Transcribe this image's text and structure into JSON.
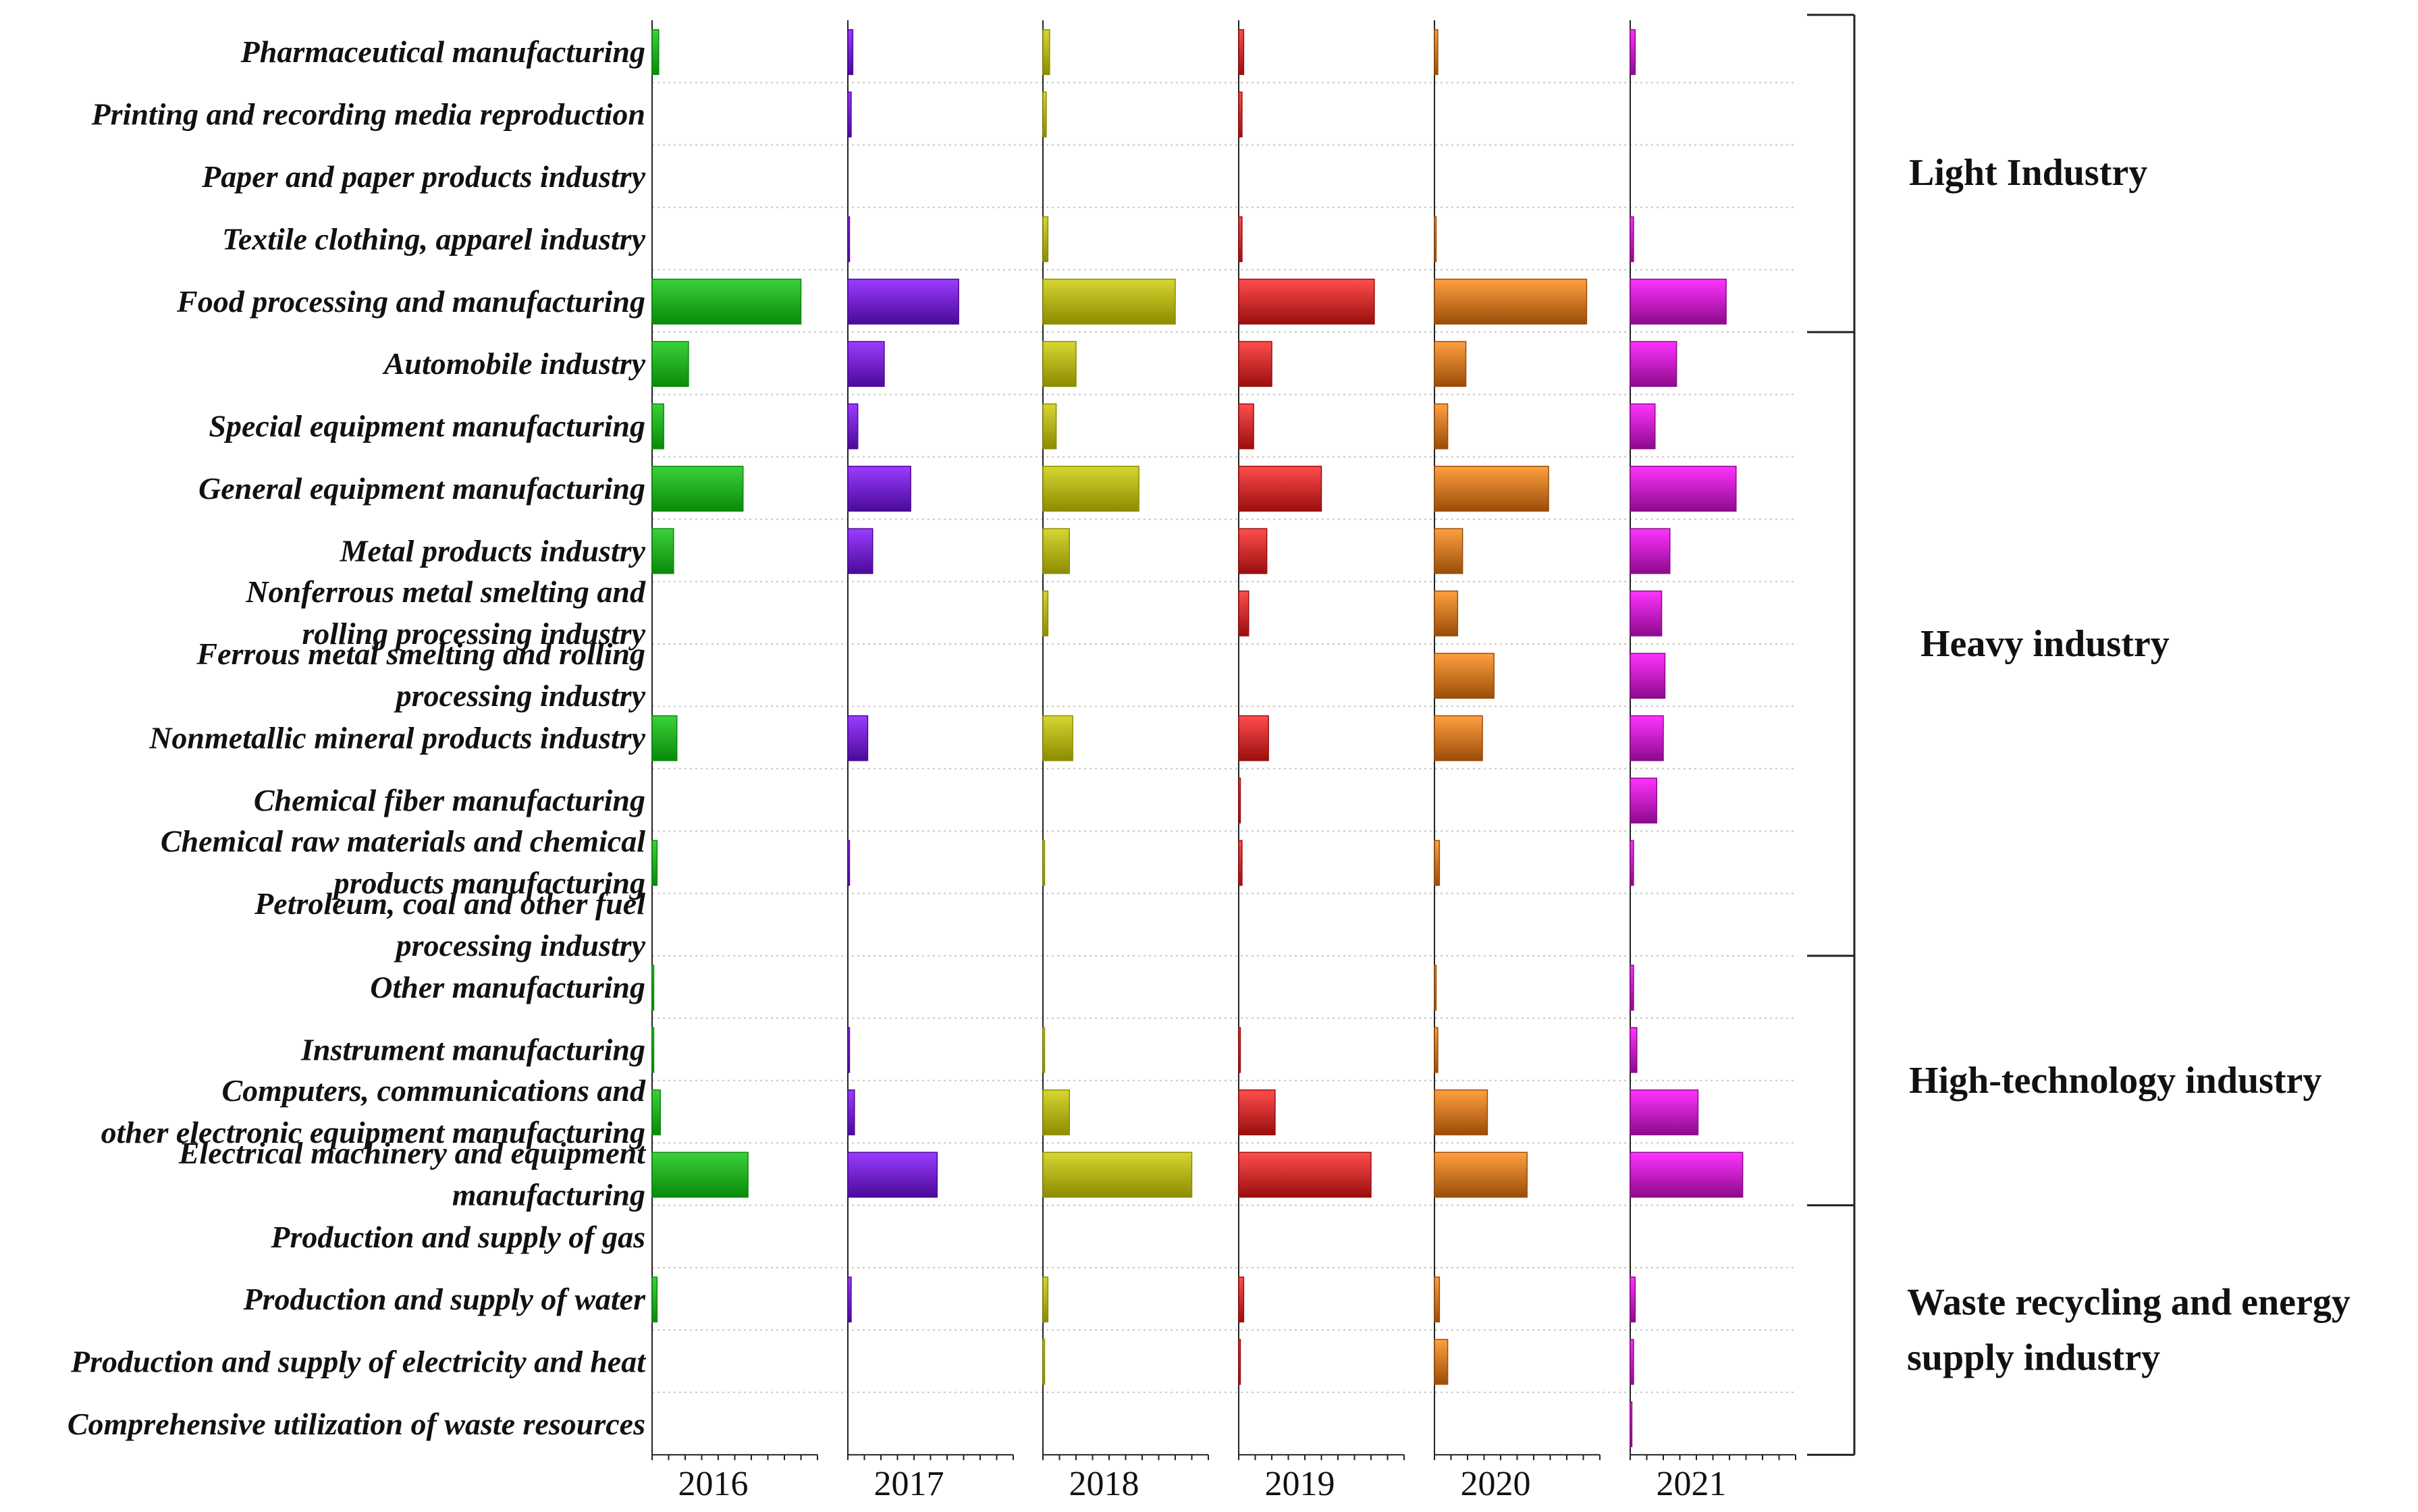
{
  "chart_data": {
    "type": "bar",
    "orientation": "horizontal",
    "title": "",
    "xlabel": "",
    "ylabel": "",
    "xlim": [
      0,
      100
    ],
    "grid": "dotted horizontal separators",
    "categories": [
      "Pharmaceutical manufacturing",
      "Printing and recording media reproduction",
      "Paper and paper products industry",
      "Textile clothing, apparel industry",
      "Food processing and manufacturing",
      "Automobile industry",
      "Special equipment manufacturing",
      "General equipment manufacturing",
      "Metal products industry",
      "Nonferrous metal smelting and rolling processing industry",
      "Ferrous metal smelting and rolling processing industry",
      "Nonmetallic mineral products industry",
      "Chemical fiber manufacturing",
      "Chemical raw materials and chemical products manufacturing",
      "Petroleum, coal and other fuel processing industry",
      "Other manufacturing",
      "Instrument manufacturing",
      "Computers, communications and other electronic equipment manufacturing",
      "Electrical machinery and equipment manufacturing",
      "Production and supply of gas",
      "Production and supply of water",
      "Production and supply of electricity and heat",
      "Comprehensive utilization of waste resources"
    ],
    "category_lines": [
      [
        "Pharmaceutical manufacturing"
      ],
      [
        "Printing and recording media reproduction"
      ],
      [
        "Paper and paper products industry"
      ],
      [
        "Textile clothing, apparel industry"
      ],
      [
        "Food processing and manufacturing"
      ],
      [
        "Automobile industry"
      ],
      [
        "Special equipment manufacturing"
      ],
      [
        "General equipment manufacturing"
      ],
      [
        "Metal products industry"
      ],
      [
        "Nonferrous metal smelting and",
        "rolling processing industry"
      ],
      [
        "Ferrous metal smelting and rolling",
        "processing industry"
      ],
      [
        "Nonmetallic mineral products industry"
      ],
      [
        "Chemical fiber manufacturing"
      ],
      [
        "Chemical raw materials and chemical",
        "products manufacturing"
      ],
      [
        "Petroleum, coal and other fuel",
        "processing industry"
      ],
      [
        "Other manufacturing"
      ],
      [
        "Instrument manufacturing"
      ],
      [
        "Computers, communications and",
        "other electronic equipment manufacturing"
      ],
      [
        "Electrical machinery and equipment",
        "manufacturing"
      ],
      [
        "Production and supply of gas"
      ],
      [
        "Production and supply of water"
      ],
      [
        "Production and supply of electricity and heat"
      ],
      [
        "Comprehensive utilization of waste resources"
      ]
    ],
    "series": [
      {
        "name": "2016",
        "color_light": "#3ad13a",
        "color_dark": "#0a8a0a",
        "values": [
          4,
          0,
          0,
          0,
          90,
          22,
          7,
          55,
          13,
          0,
          0,
          15,
          0,
          3,
          0,
          1,
          1,
          5,
          58,
          0,
          3,
          0,
          0
        ]
      },
      {
        "name": "2017",
        "color_light": "#9b3cff",
        "color_dark": "#4a0a99",
        "values": [
          3,
          2,
          0,
          1,
          67,
          22,
          6,
          38,
          15,
          0,
          0,
          12,
          0,
          1,
          0,
          0,
          1,
          4,
          54,
          0,
          2,
          0,
          0
        ]
      },
      {
        "name": "2018",
        "color_light": "#d6d633",
        "color_dark": "#8c8c00",
        "values": [
          4,
          2,
          0,
          3,
          80,
          20,
          8,
          58,
          16,
          3,
          0,
          18,
          0,
          1,
          0,
          0,
          1,
          16,
          90,
          0,
          3,
          1,
          0
        ]
      },
      {
        "name": "2019",
        "color_light": "#ff4d4d",
        "color_dark": "#9a0e0e",
        "values": [
          3,
          2,
          0,
          2,
          82,
          20,
          9,
          50,
          17,
          6,
          0,
          18,
          1,
          2,
          0,
          0,
          1,
          22,
          80,
          0,
          3,
          1,
          0
        ]
      },
      {
        "name": "2020",
        "color_light": "#ffa040",
        "color_dark": "#9a4d08",
        "values": [
          2,
          0,
          0,
          1,
          92,
          19,
          8,
          69,
          17,
          14,
          36,
          29,
          0,
          3,
          0,
          1,
          2,
          32,
          56,
          0,
          3,
          8,
          0
        ]
      },
      {
        "name": "2021",
        "color_light": "#ff33ff",
        "color_dark": "#8c0a8c",
        "values": [
          3,
          0,
          0,
          2,
          58,
          28,
          15,
          64,
          24,
          19,
          21,
          20,
          16,
          2,
          0,
          2,
          4,
          41,
          68,
          0,
          3,
          2,
          1
        ]
      }
    ],
    "groups": [
      {
        "label_lines": [
          "Light Industry"
        ],
        "from": 0,
        "to": 4
      },
      {
        "label_lines": [
          "Heavy industry"
        ],
        "from": 5,
        "to": 14
      },
      {
        "label_lines": [
          "High-technology industry"
        ],
        "from": 15,
        "to": 18
      },
      {
        "label_lines": [
          "Waste recycling and energy",
          "supply industry"
        ],
        "from": 19,
        "to": 22
      }
    ]
  }
}
